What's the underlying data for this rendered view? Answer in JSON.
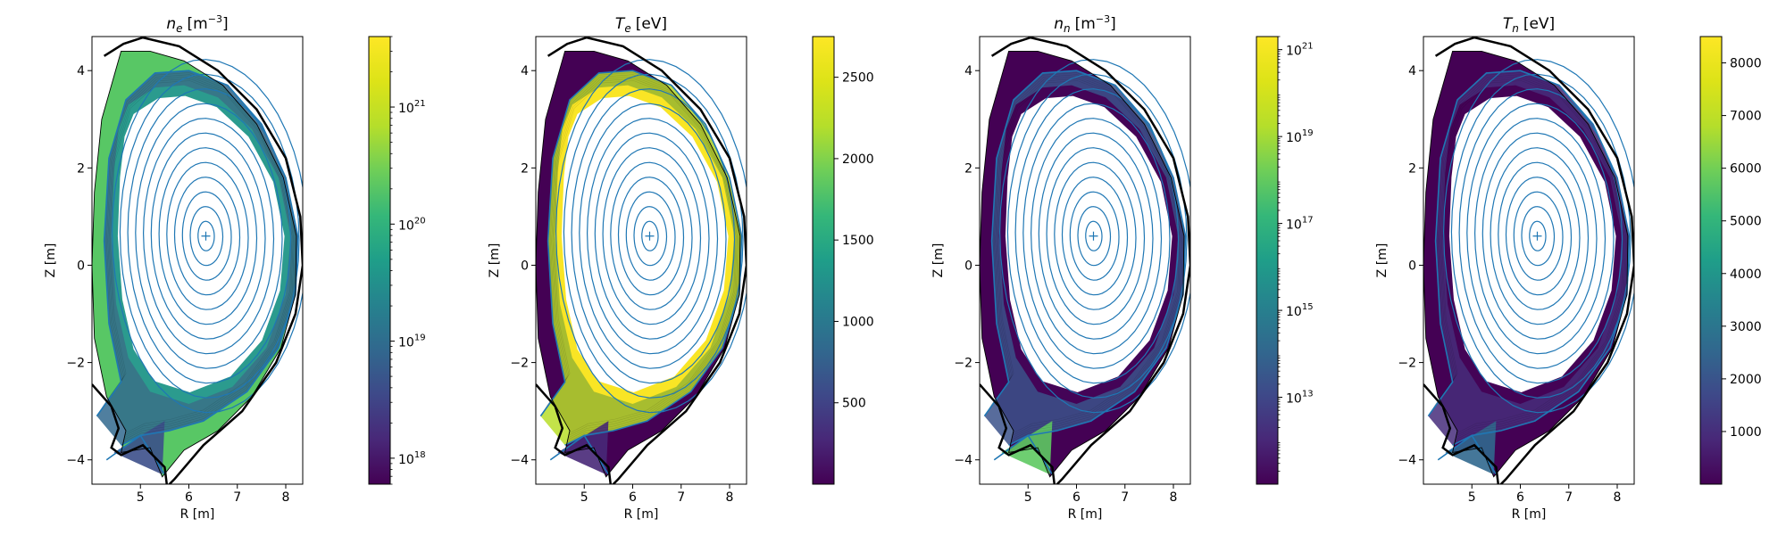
{
  "chart_data": [
    {
      "type": "heatmap",
      "title": "n_e [m^-3]",
      "title_base": "n",
      "title_sub": "e",
      "title_unit_text": "[m",
      "title_unit_exp": "−3",
      "title_unit_close": "]",
      "xlabel": "R [m]",
      "ylabel": "Z [m]",
      "xlim": [
        4.0,
        8.35
      ],
      "ylim": [
        -4.5,
        4.7
      ],
      "xticks": [
        5,
        6,
        7,
        8
      ],
      "yticks": [
        -4,
        -2,
        0,
        2,
        4
      ],
      "colorbar": {
        "scale": "log",
        "min": 6e+17,
        "max": 4e+21,
        "tick_exponents": [
          18,
          19,
          20,
          21
        ]
      },
      "colors": {
        "edge": "#58c765",
        "core": "#2a9d8e",
        "inner": "#31688e",
        "divertor": "#3c4f8a"
      }
    },
    {
      "type": "heatmap",
      "title": "T_e [eV]",
      "title_base": "T",
      "title_sub": "e",
      "title_unit_text": "[eV]",
      "title_unit_exp": "",
      "title_unit_close": "",
      "xlabel": "R [m]",
      "ylabel": "Z [m]",
      "xlim": [
        4.0,
        8.35
      ],
      "ylim": [
        -4.5,
        4.7
      ],
      "xticks": [
        5,
        6,
        7,
        8
      ],
      "yticks": [
        -4,
        -2,
        0,
        2,
        4
      ],
      "colorbar": {
        "scale": "linear",
        "min": 0,
        "max": 2750,
        "ticks": [
          500,
          1000,
          1500,
          2000,
          2500
        ]
      },
      "colors": {
        "edge": "#440154",
        "core": "#fde725",
        "inner": "#b8de29",
        "divertor": "#482878"
      }
    },
    {
      "type": "heatmap",
      "title": "n_n [m^-3]",
      "title_base": "n",
      "title_sub": "n",
      "title_unit_text": "[m",
      "title_unit_exp": "−3",
      "title_unit_close": "]",
      "xlabel": "R [m]",
      "ylabel": "Z [m]",
      "xlim": [
        4.0,
        8.35
      ],
      "ylim": [
        -4.5,
        4.7
      ],
      "xticks": [
        5,
        6,
        7,
        8
      ],
      "yticks": [
        -4,
        -2,
        0,
        2,
        4
      ],
      "colorbar": {
        "scale": "log",
        "min": 100000000000.0,
        "max": 2e+21,
        "tick_exponents": [
          13,
          15,
          17,
          19,
          21
        ]
      },
      "colors": {
        "edge": "#440154",
        "core": "#440154",
        "inner": "#3b528b",
        "divertor": "#5ec962"
      }
    },
    {
      "type": "heatmap",
      "title": "T_n [eV]",
      "title_base": "T",
      "title_sub": "n",
      "title_unit_text": "[eV]",
      "title_unit_exp": "",
      "title_unit_close": "",
      "xlabel": "R [m]",
      "ylabel": "Z [m]",
      "xlim": [
        4.0,
        8.35
      ],
      "ylim": [
        -4.5,
        4.7
      ],
      "xticks": [
        5,
        6,
        7,
        8
      ],
      "yticks": [
        -4,
        -2,
        0,
        2,
        4
      ],
      "colorbar": {
        "scale": "linear",
        "min": 0,
        "max": 8500,
        "ticks": [
          1000,
          2000,
          3000,
          4000,
          5000,
          6000,
          7000,
          8000
        ]
      },
      "colors": {
        "edge": "#440154",
        "core": "#440154",
        "inner": "#472d7b",
        "divertor": "#31688e"
      }
    }
  ],
  "common": {
    "contour_color": "#1f77b4",
    "magnetic_axis": {
      "r": 6.35,
      "z": 0.6
    },
    "flux_surface_count": 12
  }
}
